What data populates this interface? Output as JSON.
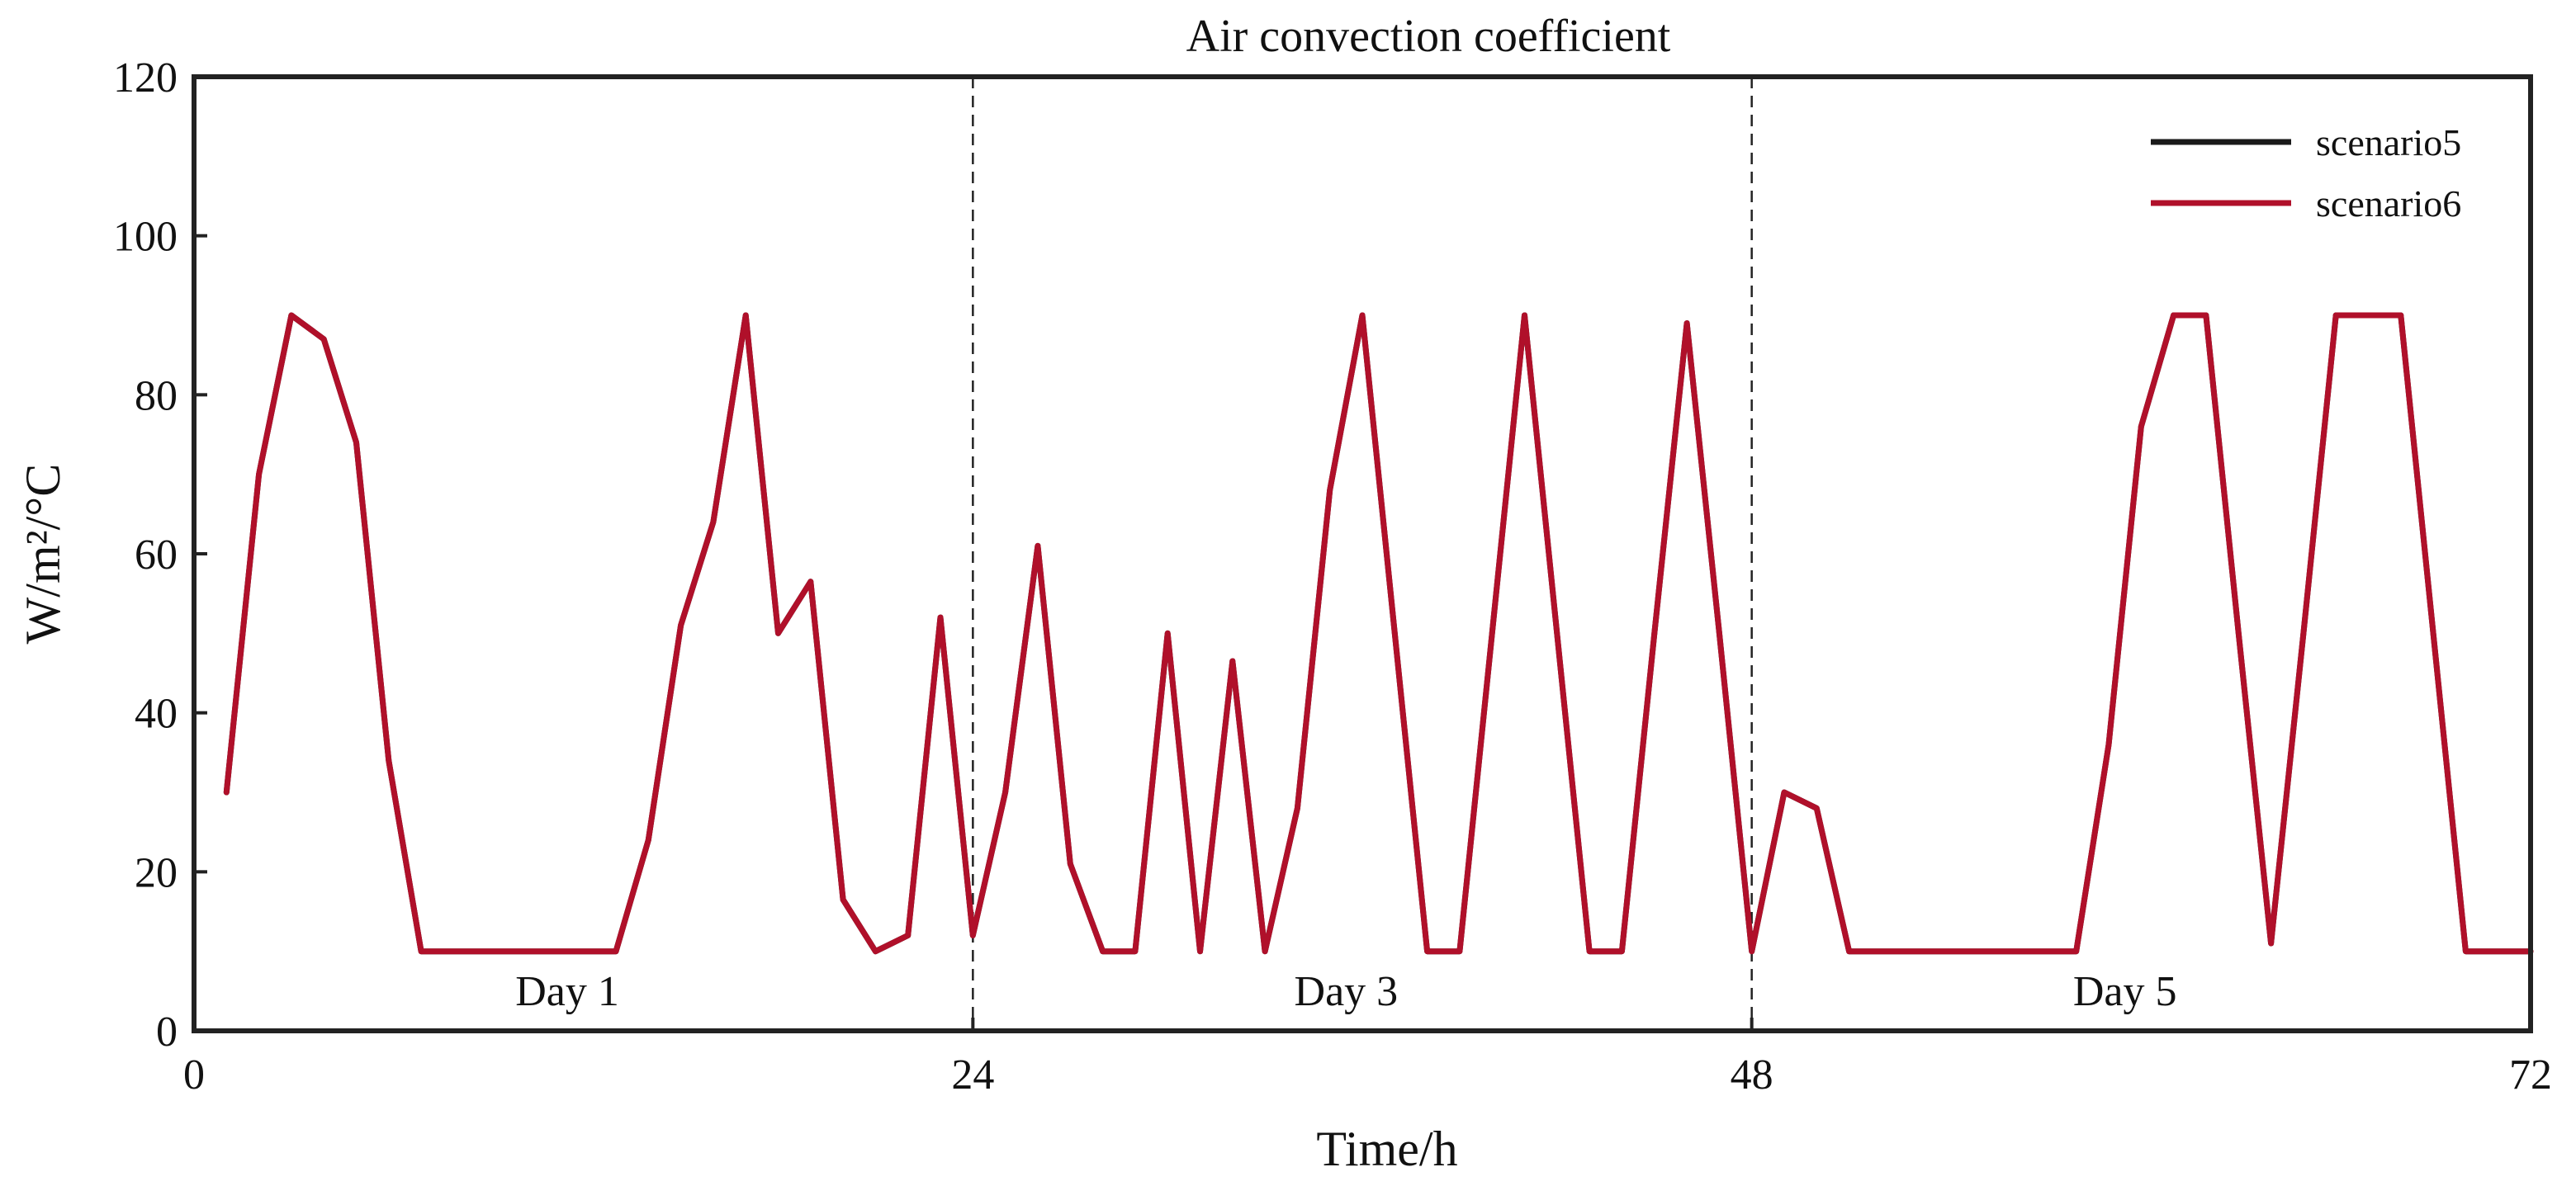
{
  "chart_data": {
    "type": "line",
    "title": "Air convection coefficient",
    "xlabel": "Time/h",
    "ylabel": "W/m²/°C",
    "xlim": [
      0,
      72
    ],
    "ylim": [
      0,
      120
    ],
    "xticks": [
      0,
      24,
      48,
      72
    ],
    "yticks": [
      0,
      20,
      40,
      60,
      80,
      100,
      120
    ],
    "grid": false,
    "legend_position": "top-right",
    "day_separators": [
      24,
      48
    ],
    "day_labels": [
      {
        "text": "Day 1",
        "x": 11.5
      },
      {
        "text": "Day 3",
        "x": 35.5
      },
      {
        "text": "Day 5",
        "x": 59.5
      }
    ],
    "series": [
      {
        "name": "scenario5",
        "color": "#1a1a1a",
        "x": [
          1,
          2,
          3,
          4,
          5,
          6,
          7,
          8,
          9,
          10,
          11,
          12,
          13,
          14,
          15,
          16,
          17,
          18,
          19,
          20,
          21,
          22,
          23,
          24,
          25,
          26,
          27,
          28,
          29,
          30,
          31,
          32,
          33,
          34,
          35,
          36,
          37,
          38,
          39,
          40,
          41,
          42,
          43,
          44,
          45,
          46,
          47,
          48,
          49,
          50,
          51,
          52,
          53,
          54,
          55,
          56,
          57,
          58,
          59,
          60,
          61,
          62,
          63,
          64,
          65,
          66,
          67,
          68,
          69,
          70,
          71,
          72
        ],
        "values": [
          30,
          70,
          90,
          87,
          74,
          34,
          10,
          10,
          10,
          10,
          10,
          10,
          10,
          24,
          51,
          64,
          90,
          50,
          56.5,
          16.5,
          10,
          12,
          52,
          12,
          30,
          61,
          21,
          10,
          10,
          50,
          10,
          46.5,
          10,
          28,
          68,
          90,
          50,
          10,
          10,
          50,
          90,
          50,
          10,
          10,
          50,
          89,
          50,
          10,
          30,
          28,
          10,
          10,
          10,
          10,
          10,
          10,
          10,
          10,
          36,
          76,
          90,
          90,
          50,
          11,
          50,
          90,
          90,
          90,
          50,
          10,
          10,
          10
        ]
      },
      {
        "name": "scenario6",
        "color": "#b0102a",
        "x": [
          1,
          2,
          3,
          4,
          5,
          6,
          7,
          8,
          9,
          10,
          11,
          12,
          13,
          14,
          15,
          16,
          17,
          18,
          19,
          20,
          21,
          22,
          23,
          24,
          25,
          26,
          27,
          28,
          29,
          30,
          31,
          32,
          33,
          34,
          35,
          36,
          37,
          38,
          39,
          40,
          41,
          42,
          43,
          44,
          45,
          46,
          47,
          48,
          49,
          50,
          51,
          52,
          53,
          54,
          55,
          56,
          57,
          58,
          59,
          60,
          61,
          62,
          63,
          64,
          65,
          66,
          67,
          68,
          69,
          70,
          71,
          72
        ],
        "values": [
          30,
          70,
          90,
          87,
          74,
          34,
          10,
          10,
          10,
          10,
          10,
          10,
          10,
          24,
          51,
          64,
          90,
          50,
          56.5,
          16.5,
          10,
          12,
          52,
          12,
          30,
          61,
          21,
          10,
          10,
          50,
          10,
          46.5,
          10,
          28,
          68,
          90,
          50,
          10,
          10,
          50,
          90,
          50,
          10,
          10,
          50,
          89,
          50,
          10,
          30,
          28,
          10,
          10,
          10,
          10,
          10,
          10,
          10,
          10,
          36,
          76,
          90,
          90,
          50,
          11,
          50,
          90,
          90,
          90,
          50,
          10,
          10,
          10
        ]
      }
    ]
  }
}
